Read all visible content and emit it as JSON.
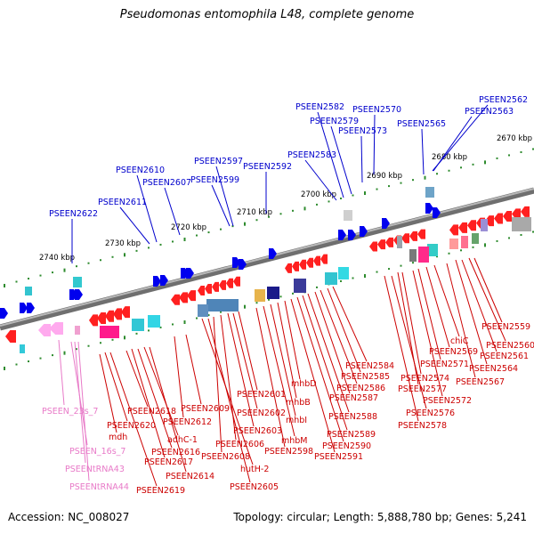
{
  "title": "Pseudomonas entomophila L48, complete genome",
  "footer": {
    "accession": "Accession: NC_008027",
    "summary": "Topology: circular; Length: 5,888,780 bp; Genes: 5,241"
  },
  "scale_labels": [
    "2670 kbp",
    "2680 kbp",
    "2690 kbp",
    "2700 kbp",
    "2710 kbp",
    "2720 kbp",
    "2730 kbp",
    "2740 kbp"
  ],
  "forward_genes": [
    "PSEEN2562",
    "PSEEN2563",
    "PSEEN2565",
    "PSEEN2570",
    "PSEEN2573",
    "PSEEN2579",
    "PSEEN2582",
    "PSEEN2583",
    "PSEEN2592",
    "PSEEN2597",
    "PSEEN2599",
    "PSEEN2607",
    "PSEEN2610",
    "PSEEN2611",
    "PSEEN2622"
  ],
  "reverse_genes": [
    "PSEEN2559",
    "PSEEN2560",
    "PSEEN2561",
    "PSEEN2564",
    "chiC",
    "PSEEN2569",
    "PSEEN2567",
    "PSEEN2571",
    "PSEEN2572",
    "PSEEN2574",
    "PSEEN2577",
    "PSEEN2576",
    "PSEEN2578",
    "PSEEN2584",
    "PSEEN2585",
    "PSEEN2586",
    "PSEEN2587",
    "PSEEN2588",
    "PSEEN2589",
    "PSEEN2590",
    "PSEEN2591",
    "mhbD",
    "mhbB",
    "mhbI",
    "mhbM",
    "PSEEN2598",
    "PSEEN2601",
    "PSEEN2602",
    "PSEEN2603",
    "PSEEN2606",
    "PSEEN2608",
    "PSEEN2605",
    "hutH-2",
    "PSEEN2609",
    "PSEEN2612",
    "PSEEN2614",
    "adhC-1",
    "PSEEN2616",
    "PSEEN2617",
    "PSEEN2618",
    "PSEEN2619",
    "PSEEN2620",
    "mdh"
  ],
  "rna_genes": [
    "PSEEN_23s_7",
    "PSEEN_16s_7",
    "PSEENtRNA43",
    "PSEENtRNA44"
  ],
  "colors": {
    "forward_label": "#0000cc",
    "reverse_label": "#cc0000",
    "rna_label": "#e87ac8",
    "backbone": "#808080",
    "tick": "#2e8b2e"
  }
}
